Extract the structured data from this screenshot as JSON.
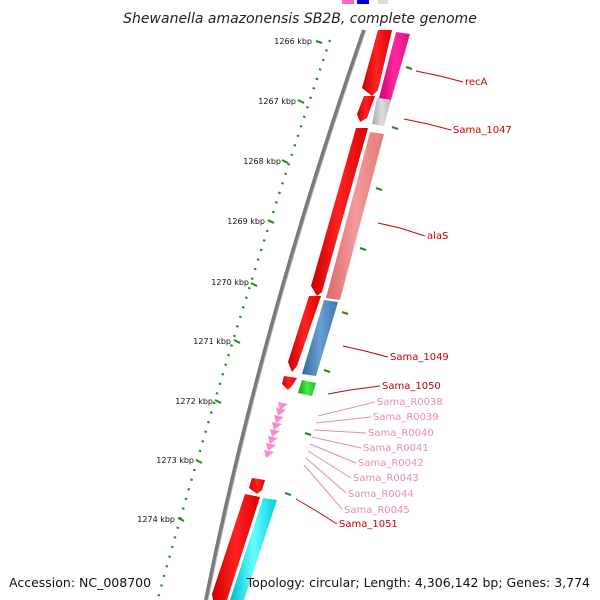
{
  "title": "Shewanella amazonensis SB2B, complete genome",
  "footer": {
    "accession": "Accession: NC_008700",
    "topology": "Topology: circular; Length: 4,306,142 bp; Genes: 3,774"
  },
  "scale_labels": [
    "1266 kbp",
    "1267 kbp",
    "1268 kbp",
    "1269 kbp",
    "1270 kbp",
    "1271 kbp",
    "1272 kbp",
    "1273 kbp",
    "1274 kbp"
  ],
  "gene_labels": [
    {
      "name": "recA",
      "color": "#cc0000"
    },
    {
      "name": "Sama_1047",
      "color": "#cc0000"
    },
    {
      "name": "alaS",
      "color": "#cc0000"
    },
    {
      "name": "Sama_1049",
      "color": "#cc0000"
    },
    {
      "name": "Sama_1050",
      "color": "#cc0000"
    },
    {
      "name": "Sama_R0038",
      "color": "#ee88bb"
    },
    {
      "name": "Sama_R0039",
      "color": "#ee88bb"
    },
    {
      "name": "Sama_R0040",
      "color": "#ee88bb"
    },
    {
      "name": "Sama_R0041",
      "color": "#ee88bb"
    },
    {
      "name": "Sama_R0042",
      "color": "#ee88bb"
    },
    {
      "name": "Sama_R0043",
      "color": "#ee88bb"
    },
    {
      "name": "Sama_R0044",
      "color": "#ee88bb"
    },
    {
      "name": "Sama_R0045",
      "color": "#ee88bb"
    },
    {
      "name": "Sama_1051",
      "color": "#cc0000"
    }
  ],
  "colors": {
    "cds_strand": "#ff0000",
    "backbone": "#888888",
    "ticks": "#228822",
    "recA": "#ff1493",
    "Sama_1047": "#c8c8c8",
    "alaS": "#f08080",
    "Sama_1049": "#4682b4",
    "Sama_1050": "#22cc22",
    "trna": "#ff88cc",
    "Sama_1051": "#00ffff"
  }
}
